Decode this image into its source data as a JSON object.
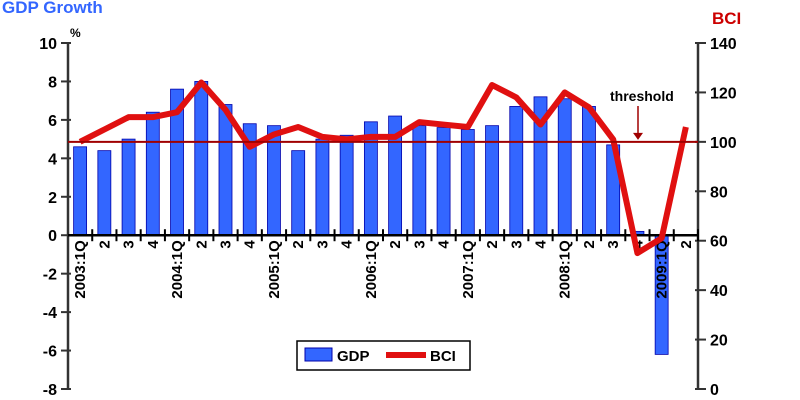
{
  "chart_data": {
    "type": "bar+line",
    "title_left": "GDP Growth",
    "title_right": "BCI",
    "ylabel_left": "%",
    "categories": [
      "2003:1Q",
      "2",
      "3",
      "4",
      "2004:1Q",
      "2",
      "3",
      "4",
      "2005:1Q",
      "2",
      "3",
      "4",
      "2006:1Q",
      "2",
      "3",
      "4",
      "2007:1Q",
      "2",
      "3",
      "4",
      "2008:1Q",
      "2",
      "3",
      "4",
      "2009:1Q",
      "2"
    ],
    "y_left": {
      "min": -8,
      "max": 10,
      "ticks": [
        -8,
        -6,
        -4,
        -2,
        0,
        2,
        4,
        6,
        8,
        10
      ]
    },
    "y_right": {
      "min": 0,
      "max": 140,
      "ticks": [
        0,
        20,
        40,
        60,
        80,
        100,
        120,
        140
      ]
    },
    "series": [
      {
        "name": "GDP",
        "type": "bar",
        "axis": "left",
        "color": "#3366ff",
        "values": [
          4.6,
          4.4,
          5.0,
          6.4,
          7.6,
          8.0,
          6.8,
          5.8,
          5.7,
          4.4,
          5.0,
          5.2,
          5.9,
          6.2,
          5.7,
          5.6,
          5.5,
          5.7,
          6.7,
          7.2,
          7.1,
          6.7,
          4.7,
          0.2,
          -6.2,
          null
        ]
      },
      {
        "name": "BCI",
        "type": "line",
        "axis": "right",
        "color": "#e01010",
        "values": [
          100,
          105,
          110,
          110,
          112,
          124,
          113,
          98,
          103,
          106,
          102,
          101,
          102,
          102,
          108,
          107,
          106,
          123,
          118,
          107,
          120,
          114,
          101,
          55,
          61,
          106
        ]
      }
    ],
    "threshold": {
      "label": "threshold",
      "value": 100,
      "axis": "right",
      "color": "#a00000"
    },
    "legend": "bottom-center",
    "grid": false
  }
}
